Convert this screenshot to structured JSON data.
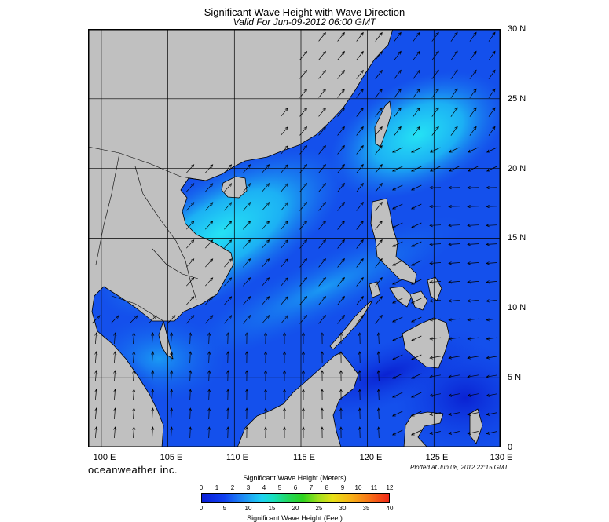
{
  "map": {
    "title": "Significant Wave Height with Wave Direction",
    "subtitle": "Valid For Jun-09-2012 06:00 GMT",
    "lat_labels": [
      "30 N",
      "25 N",
      "20 N",
      "15 N",
      "10 N",
      "5 N",
      "0"
    ],
    "lon_labels": [
      "100 E",
      "105 E",
      "110 E",
      "115 E",
      "120 E",
      "125 E",
      "130 E"
    ],
    "extent": {
      "lon_min": 99,
      "lon_max": 130,
      "lat_min": 0,
      "lat_max": 30
    },
    "land_color": "#c0c0c0",
    "brand": "oceanweather inc.",
    "plotted": "Plotted at Jun 08, 2012 22:15 GMT"
  },
  "scale": {
    "title_meters": "Significant Wave Height (Meters)",
    "title_feet": "Significant Wave Height (Feet)",
    "meters": [
      "0",
      "1",
      "2",
      "3",
      "4",
      "5",
      "6",
      "7",
      "8",
      "9",
      "10",
      "11",
      "12"
    ],
    "feet": [
      "0",
      "5",
      "10",
      "15",
      "20",
      "25",
      "30",
      "35",
      "40"
    ]
  }
}
